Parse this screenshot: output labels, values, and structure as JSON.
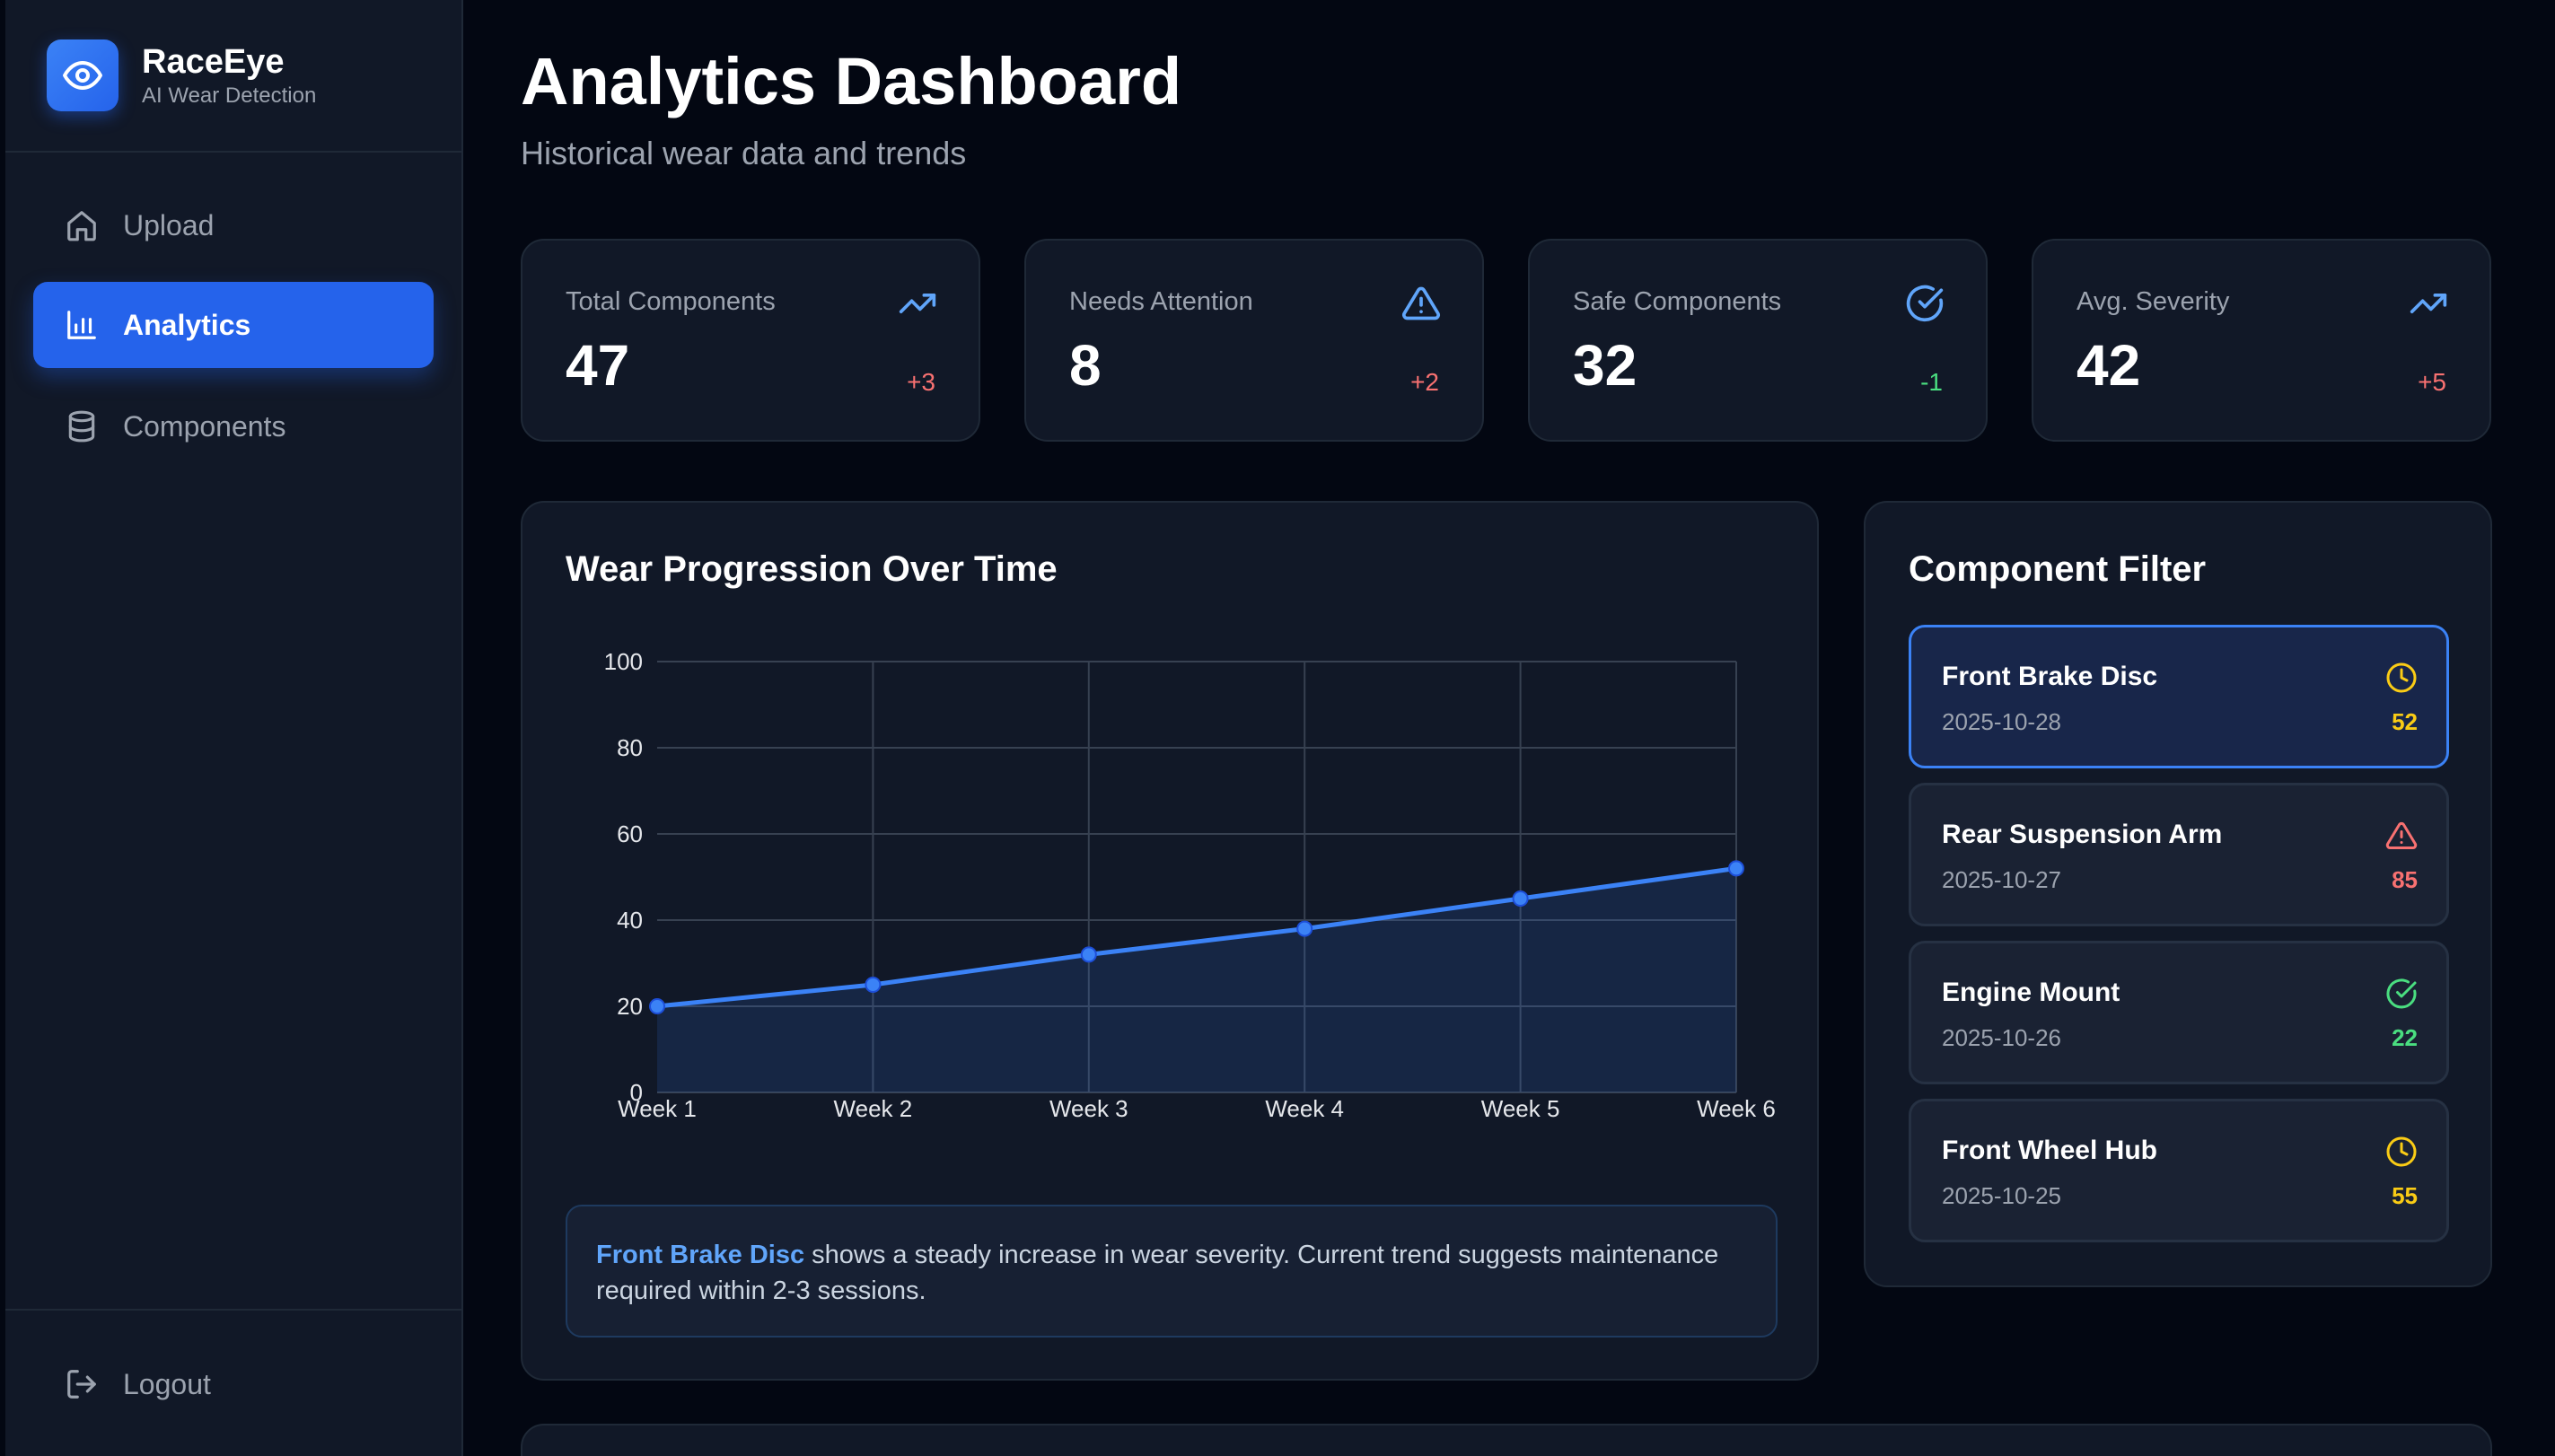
{
  "brand": {
    "name": "RaceEye",
    "subtitle": "AI Wear Detection"
  },
  "nav": {
    "items": [
      {
        "label": "Upload",
        "icon": "home-icon"
      },
      {
        "label": "Analytics",
        "icon": "bar-chart-icon",
        "active": true
      },
      {
        "label": "Components",
        "icon": "database-icon"
      }
    ],
    "logout": {
      "label": "Logout",
      "icon": "logout-icon"
    }
  },
  "header": {
    "title": "Analytics Dashboard",
    "subtitle": "Historical wear data and trends"
  },
  "stats": [
    {
      "label": "Total Components",
      "value": "47",
      "delta": "+3",
      "icon": "trending-up-icon",
      "color": "#60a5fa",
      "deltaColor": "#f87171"
    },
    {
      "label": "Needs Attention",
      "value": "8",
      "delta": "+2",
      "icon": "alert-triangle-icon",
      "color": "#60a5fa",
      "deltaColor": "#f87171"
    },
    {
      "label": "Safe Components",
      "value": "32",
      "delta": "-1",
      "icon": "check-circle-icon",
      "color": "#60a5fa",
      "deltaColor": "#4ade80"
    },
    {
      "label": "Avg. Severity",
      "value": "42",
      "delta": "+5",
      "icon": "trending-up-icon",
      "color": "#60a5fa",
      "deltaColor": "#f87171"
    }
  ],
  "chart_card": {
    "title": "Wear Progression Over Time",
    "insight_highlight": "Front Brake Disc",
    "insight_text": " shows a steady increase in wear severity. Current trend suggests maintenance required within 2-3 sessions."
  },
  "chart_data": {
    "type": "area",
    "categories": [
      "Week 1",
      "Week 2",
      "Week 3",
      "Week 4",
      "Week 5",
      "Week 6"
    ],
    "series": [
      {
        "values": [
          20,
          25,
          32,
          38,
          45,
          52
        ]
      }
    ],
    "ylim": [
      0,
      100
    ],
    "yticks": [
      0,
      20,
      40,
      60,
      80,
      100
    ],
    "grid": true,
    "color": "#3b82f6"
  },
  "filter": {
    "title": "Component Filter",
    "items": [
      {
        "name": "Front Brake Disc",
        "date": "2025-10-28",
        "score": "52",
        "icon": "clock-icon",
        "color": "#facc15",
        "selected": true
      },
      {
        "name": "Rear Suspension Arm",
        "date": "2025-10-27",
        "score": "85",
        "icon": "alert-triangle-icon",
        "color": "#f87171"
      },
      {
        "name": "Engine Mount",
        "date": "2025-10-26",
        "score": "22",
        "icon": "check-circle-icon",
        "color": "#4ade80"
      },
      {
        "name": "Front Wheel Hub",
        "date": "2025-10-25",
        "score": "55",
        "icon": "clock-icon",
        "color": "#facc15"
      }
    ]
  }
}
